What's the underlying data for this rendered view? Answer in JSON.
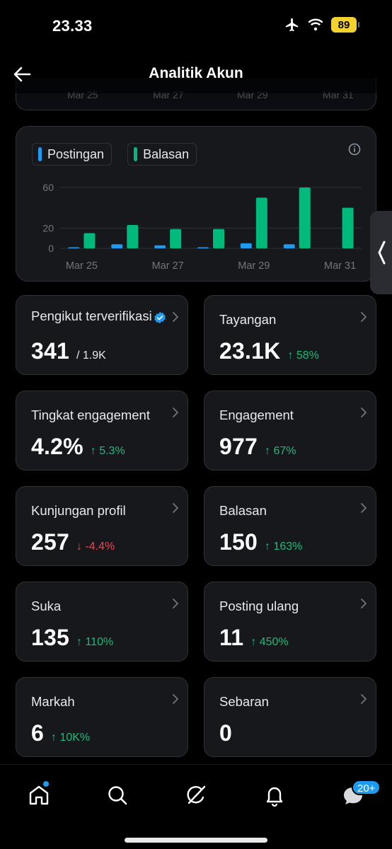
{
  "status_bar": {
    "time": "23.33",
    "battery": "89",
    "icons": [
      "airplane-icon",
      "wifi-icon",
      "battery-icon"
    ]
  },
  "header": {
    "title": "Analitik Akun",
    "back_icon": "arrow-left-icon"
  },
  "top_card": {
    "ticks": [
      "Mar 25",
      "Mar 27",
      "Mar 29",
      "Mar 31"
    ]
  },
  "chart": {
    "legend": [
      "Postingan",
      "Balasan"
    ],
    "info_icon": "info-icon"
  },
  "chart_data": {
    "type": "bar",
    "categories": [
      "Mar 25",
      "Mar 26",
      "Mar 27",
      "Mar 28",
      "Mar 29",
      "Mar 30",
      "Mar 31"
    ],
    "x_tick_labels": [
      "Mar 25",
      "Mar 27",
      "Mar 29",
      "Mar 31"
    ],
    "y_tick_labels": [
      "60",
      "20",
      "0"
    ],
    "ylim": [
      0,
      60
    ],
    "grid": true,
    "legend_position": "top-left",
    "series": [
      {
        "name": "Postingan",
        "color": "#1d9bf0",
        "values": [
          1,
          4,
          3,
          1,
          5,
          4,
          0
        ]
      },
      {
        "name": "Balasan",
        "color": "#00ba7c",
        "values": [
          15,
          23,
          19,
          19,
          50,
          60,
          40
        ]
      }
    ]
  },
  "stats": [
    {
      "label": "Pengikut terverifikasi",
      "value": "341",
      "sub": "/ 1.9K",
      "change": "",
      "direction": "",
      "verified": true
    },
    {
      "label": "Tayangan",
      "value": "23.1K",
      "sub": "",
      "change": "58%",
      "direction": "up"
    },
    {
      "label": "Tingkat engagement",
      "value": "4.2%",
      "sub": "",
      "change": "5.3%",
      "direction": "up"
    },
    {
      "label": "Engagement",
      "value": "977",
      "sub": "",
      "change": "67%",
      "direction": "up"
    },
    {
      "label": "Kunjungan profil",
      "value": "257",
      "sub": "",
      "change": "-4.4%",
      "direction": "down"
    },
    {
      "label": "Balasan",
      "value": "150",
      "sub": "",
      "change": "163%",
      "direction": "up"
    },
    {
      "label": "Suka",
      "value": "135",
      "sub": "",
      "change": "110%",
      "direction": "up"
    },
    {
      "label": "Posting ulang",
      "value": "11",
      "sub": "",
      "change": "450%",
      "direction": "up"
    },
    {
      "label": "Markah",
      "value": "6",
      "sub": "",
      "change": "10K%",
      "direction": "up"
    },
    {
      "label": "Sebaran",
      "value": "0",
      "sub": "",
      "change": "",
      "direction": ""
    }
  ],
  "tab_bar": {
    "tabs": [
      "home-icon",
      "search-icon",
      "grok-icon",
      "bell-icon",
      "messages-icon"
    ],
    "messages_badge": "20+"
  },
  "colors": {
    "up": "#1fba7a",
    "down": "#f4424f",
    "accent": "#1d9bf0",
    "green": "#00ba7c"
  }
}
